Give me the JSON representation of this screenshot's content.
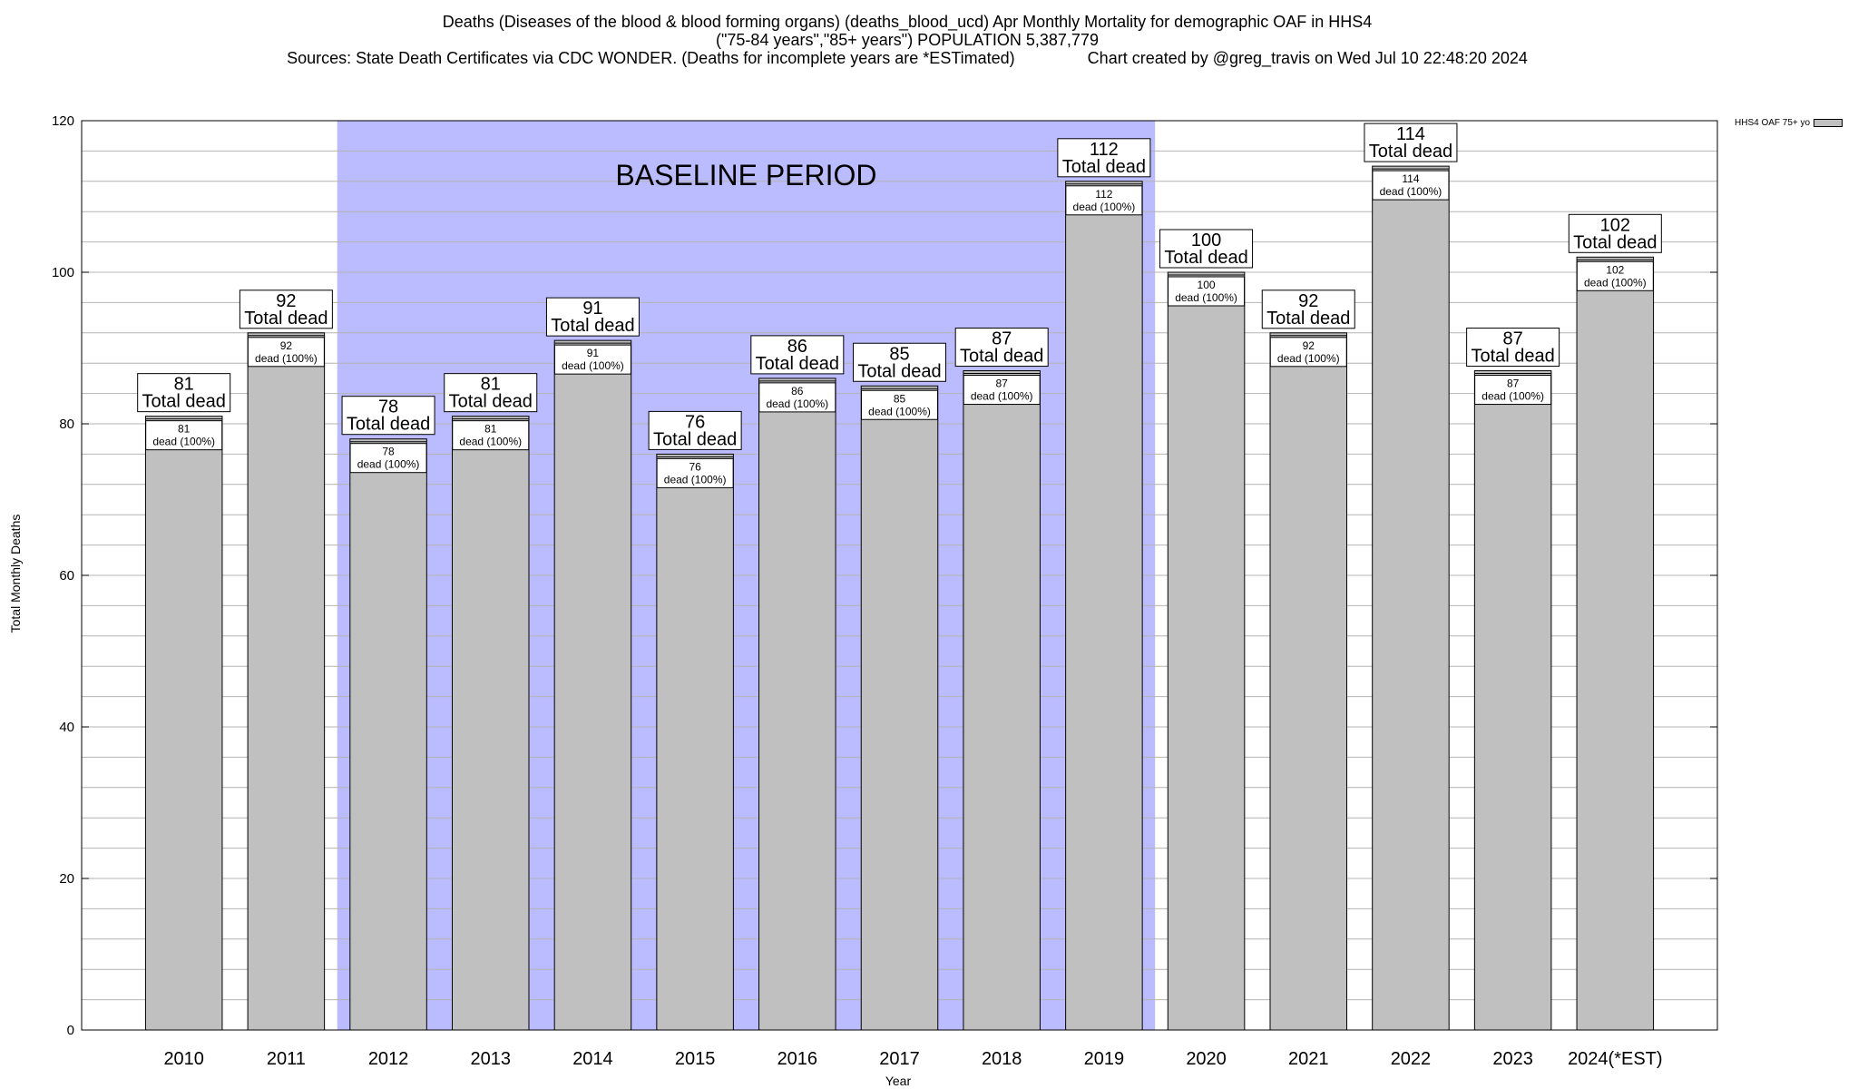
{
  "title_lines": [
    "Deaths (Diseases of the blood & blood forming organs) (deaths_blood_ucd) Apr Monthly Mortality for demographic OAF in HHS4",
    "(\"75-84 years\",\"85+ years\") POPULATION 5,387,779",
    "Sources: State Death Certificates via CDC WONDER. (Deaths for incomplete years are *ESTimated)                Chart created by @greg_travis on Wed Jul 10 22:48:20 2024"
  ],
  "chart_data": {
    "type": "bar",
    "categories": [
      "2010",
      "2011",
      "2012",
      "2013",
      "2014",
      "2015",
      "2016",
      "2017",
      "2018",
      "2019",
      "2020",
      "2021",
      "2022",
      "2023",
      "2024(*EST)"
    ],
    "series": [
      {
        "name": "HHS4 OAF 75+ yo",
        "values": [
          81,
          92,
          78,
          81,
          91,
          76,
          86,
          85,
          87,
          112,
          100,
          92,
          114,
          87,
          102
        ]
      }
    ],
    "total_label": "Total dead",
    "inner_label": "dead (100%)",
    "xlabel": "Year",
    "ylabel": "Total Monthly Deaths",
    "ylim": [
      0,
      120
    ],
    "yticks": [
      0,
      20,
      40,
      60,
      80,
      100,
      120
    ],
    "grid": true,
    "legend_position": "top-right",
    "baseline_period": {
      "label": "BASELINE PERIOD",
      "start": "2012",
      "end": "2019"
    },
    "colors": {
      "bar": "#c0c0c0",
      "baseline": "#bbbbff",
      "grid": "#b4b4b4"
    }
  }
}
